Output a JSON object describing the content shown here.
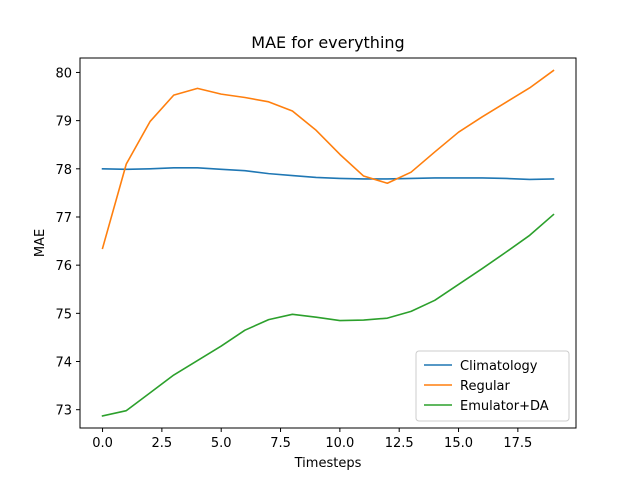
{
  "chart_data": {
    "type": "line",
    "title": "MAE for everything",
    "xlabel": "Timesteps",
    "ylabel": "MAE",
    "xlim": [
      -0.95,
      19.95
    ],
    "ylim": [
      72.62,
      80.3
    ],
    "xticks": [
      0.0,
      2.5,
      5.0,
      7.5,
      10.0,
      12.5,
      15.0,
      17.5
    ],
    "xtick_labels": [
      "0.0",
      "2.5",
      "5.0",
      "7.5",
      "10.0",
      "12.5",
      "15.0",
      "17.5"
    ],
    "yticks": [
      73,
      74,
      75,
      76,
      77,
      78,
      79,
      80
    ],
    "ytick_labels": [
      "73",
      "74",
      "75",
      "76",
      "77",
      "78",
      "79",
      "80"
    ],
    "grid": false,
    "legend_position": "lower-right",
    "x": [
      0,
      1,
      2,
      3,
      4,
      5,
      6,
      7,
      8,
      9,
      10,
      11,
      12,
      13,
      14,
      15,
      16,
      17,
      18,
      19
    ],
    "series": [
      {
        "name": "Climatology",
        "color": "#1f77b4",
        "values": [
          78.0,
          77.99,
          78.0,
          78.02,
          78.02,
          77.99,
          77.96,
          77.9,
          77.86,
          77.82,
          77.8,
          77.79,
          77.79,
          77.8,
          77.81,
          77.81,
          77.81,
          77.8,
          77.78,
          77.79
        ]
      },
      {
        "name": "Regular",
        "color": "#ff7f0e",
        "values": [
          76.35,
          78.1,
          78.98,
          79.53,
          79.67,
          79.55,
          79.48,
          79.39,
          79.2,
          78.8,
          78.3,
          77.85,
          77.7,
          77.93,
          78.35,
          78.76,
          79.08,
          79.38,
          79.68,
          80.04
        ]
      },
      {
        "name": "Emulator+DA",
        "color": "#2ca02c",
        "values": [
          72.87,
          72.98,
          73.35,
          73.72,
          74.02,
          74.32,
          74.65,
          74.87,
          74.98,
          74.92,
          74.85,
          74.86,
          74.9,
          75.04,
          75.27,
          75.6,
          75.93,
          76.27,
          76.62,
          77.05
        ]
      }
    ]
  }
}
